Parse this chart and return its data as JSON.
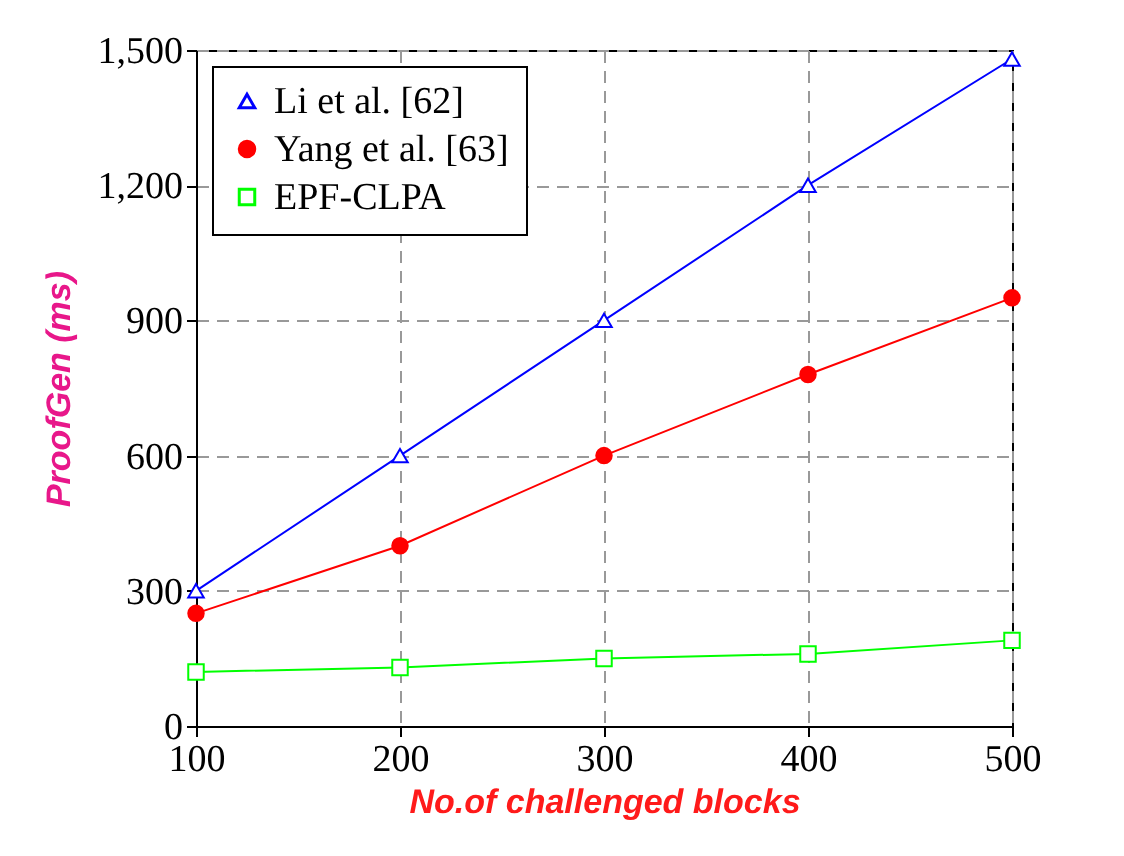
{
  "chart_data": {
    "type": "line",
    "xlabel": "No.of challenged blocks",
    "ylabel": "ProofGen (ms)",
    "x": [
      100,
      200,
      300,
      400,
      500
    ],
    "series": [
      {
        "name": "Li et al. [62]",
        "color": "#0000ff",
        "marker": "triangle",
        "values": [
          300,
          600,
          900,
          1200,
          1480
        ]
      },
      {
        "name": "Yang et al. [63]",
        "color": "#ff0000",
        "marker": "circle",
        "values": [
          250,
          400,
          600,
          780,
          950
        ]
      },
      {
        "name": "EPF-CLPA",
        "color": "#00ff00",
        "marker": "square",
        "values": [
          120,
          130,
          150,
          160,
          190
        ]
      }
    ],
    "xlim": [
      100,
      500
    ],
    "xticks": [
      100,
      200,
      300,
      400,
      500
    ],
    "ylim": [
      0,
      1500
    ],
    "yticks": [
      0,
      300,
      600,
      900,
      {
        "value": 1200,
        "label": "1,200"
      },
      {
        "value": 1500,
        "label": "1,500"
      }
    ],
    "grid": true,
    "legend": "top left",
    "line_style": "solid"
  }
}
